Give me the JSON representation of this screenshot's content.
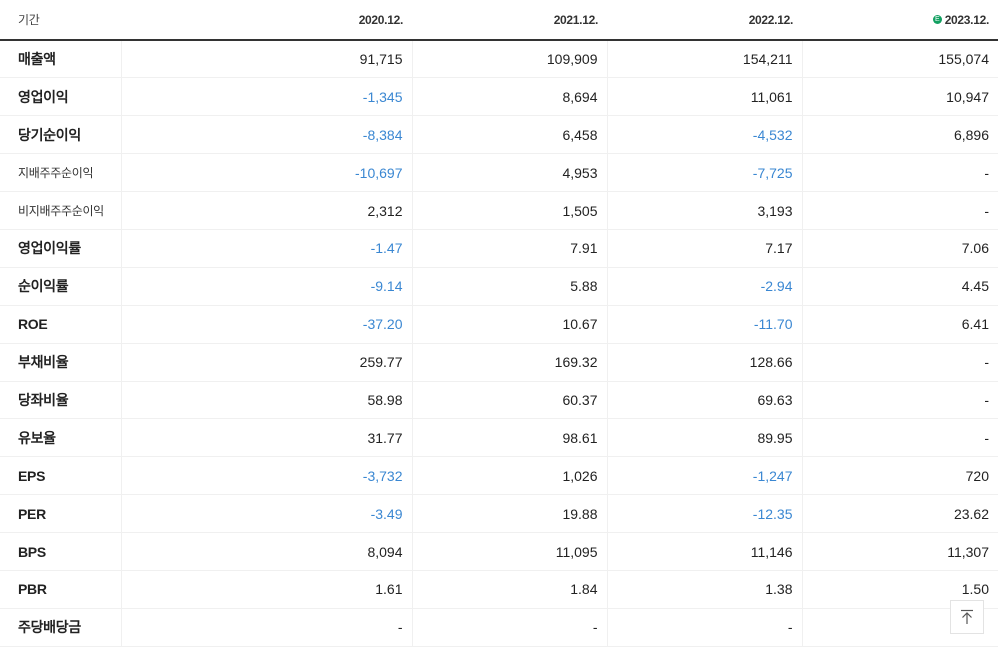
{
  "header": {
    "label": "기간",
    "periods": [
      "2020.12.",
      "2021.12.",
      "2022.12.",
      "2023.12."
    ],
    "estimate_badge": "E"
  },
  "rows": [
    {
      "label": "매출액",
      "values": [
        "91,715",
        "109,909",
        "154,211",
        "155,074"
      ]
    },
    {
      "label": "영업이익",
      "values": [
        "-1,345",
        "8,694",
        "11,061",
        "10,947"
      ]
    },
    {
      "label": "당기순이익",
      "values": [
        "-8,384",
        "6,458",
        "-4,532",
        "6,896"
      ]
    },
    {
      "label": "지배주주순이익",
      "values": [
        "-10,697",
        "4,953",
        "-7,725",
        "-"
      ]
    },
    {
      "label": "비지배주주순이익",
      "values": [
        "2,312",
        "1,505",
        "3,193",
        "-"
      ]
    },
    {
      "label": "영업이익률",
      "values": [
        "-1.47",
        "7.91",
        "7.17",
        "7.06"
      ]
    },
    {
      "label": "순이익률",
      "values": [
        "-9.14",
        "5.88",
        "-2.94",
        "4.45"
      ]
    },
    {
      "label": "ROE",
      "values": [
        "-37.20",
        "10.67",
        "-11.70",
        "6.41"
      ]
    },
    {
      "label": "부채비율",
      "values": [
        "259.77",
        "169.32",
        "128.66",
        "-"
      ]
    },
    {
      "label": "당좌비율",
      "values": [
        "58.98",
        "60.37",
        "69.63",
        "-"
      ]
    },
    {
      "label": "유보율",
      "values": [
        "31.77",
        "98.61",
        "89.95",
        "-"
      ]
    },
    {
      "label": "EPS",
      "values": [
        "-3,732",
        "1,026",
        "-1,247",
        "720"
      ]
    },
    {
      "label": "PER",
      "values": [
        "-3.49",
        "19.88",
        "-12.35",
        "23.62"
      ]
    },
    {
      "label": "BPS",
      "values": [
        "8,094",
        "11,095",
        "11,146",
        "11,307"
      ]
    },
    {
      "label": "PBR",
      "values": [
        "1.61",
        "1.84",
        "1.38",
        "1.50"
      ]
    },
    {
      "label": "주당배당금",
      "values": [
        "-",
        "-",
        "-",
        ""
      ]
    }
  ],
  "colors": {
    "negative": "#3a87d2",
    "estimate_badge": "#12a061"
  },
  "scroll_top_icon": "arrow-up-icon"
}
